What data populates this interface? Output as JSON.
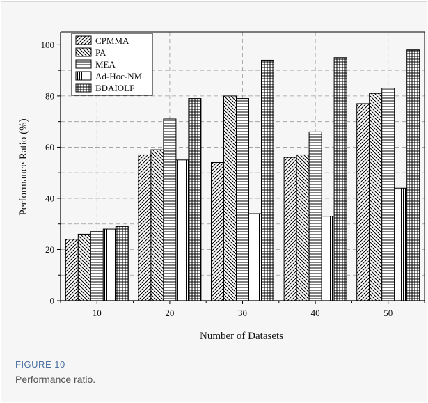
{
  "chart_data": {
    "type": "bar",
    "categories": [
      "10",
      "20",
      "30",
      "40",
      "50"
    ],
    "series": [
      {
        "name": "CPMMA",
        "values": [
          24,
          57,
          54,
          56,
          77
        ],
        "pattern": "hatch-fwd"
      },
      {
        "name": "PA",
        "values": [
          26,
          59,
          80,
          57,
          81
        ],
        "pattern": "hatch-back"
      },
      {
        "name": "MEA",
        "values": [
          27,
          71,
          79,
          66,
          83
        ],
        "pattern": "horizontal"
      },
      {
        "name": "Ad-Hoc-NM",
        "values": [
          28,
          55,
          34,
          33,
          44
        ],
        "pattern": "vertical"
      },
      {
        "name": "BDAIOLF",
        "values": [
          29,
          79,
          94,
          95,
          98
        ],
        "pattern": "grid"
      }
    ],
    "xlabel": "Number of Datasets",
    "ylabel": "Performance Ratio (%)",
    "ylim": [
      0,
      105
    ],
    "yticks": [
      0,
      20,
      40,
      60,
      80,
      100
    ],
    "grid": true,
    "legend_position": "top-left",
    "bar_fill": "#ffffff",
    "bar_stroke": "#000000"
  },
  "caption": {
    "label": "FIGURE 10",
    "text": "Performance ratio."
  }
}
